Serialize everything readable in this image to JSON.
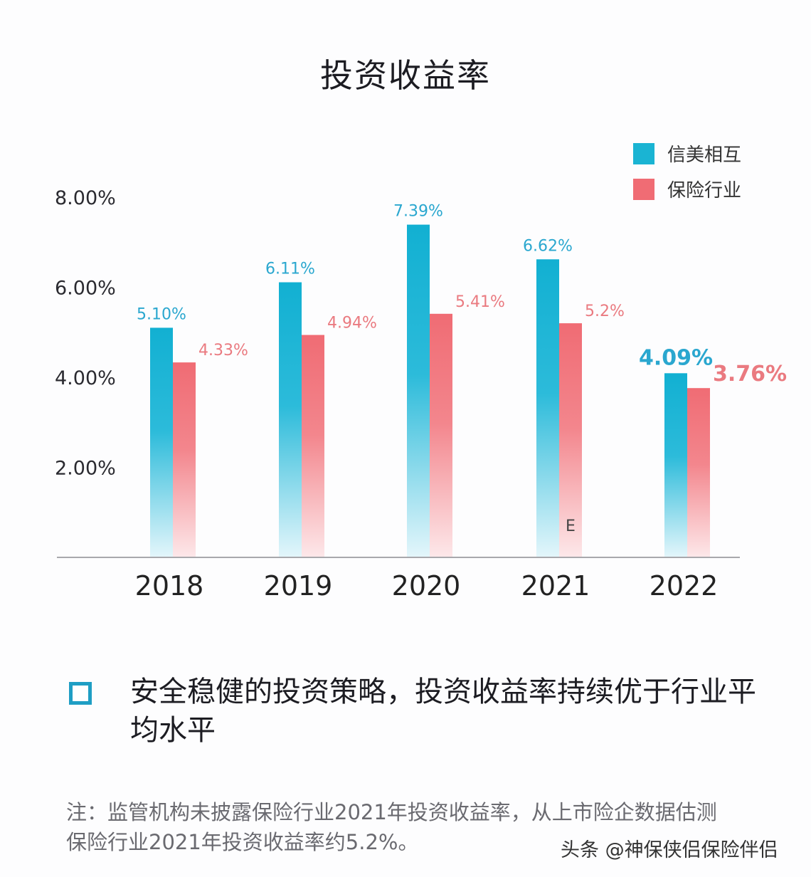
{
  "chart_data": {
    "type": "bar",
    "title": "投资收益率",
    "xlabel": "",
    "ylabel": "",
    "categories": [
      "2018",
      "2019",
      "2020",
      "2021",
      "2022"
    ],
    "series": [
      {
        "name": "信美相互",
        "color": "#1ab4d3",
        "values": [
          5.1,
          6.11,
          7.39,
          6.62,
          4.09
        ],
        "labels": [
          "5.10%",
          "6.11%",
          "7.39%",
          "6.62%",
          "4.09%"
        ]
      },
      {
        "name": "保险行业",
        "color": "#f06c74",
        "values": [
          4.33,
          4.94,
          5.41,
          5.2,
          3.76
        ],
        "labels": [
          "4.33%",
          "4.94%",
          "5.41%",
          "5.2%",
          "3.76%"
        ]
      }
    ],
    "yticks": [
      {
        "value": 2,
        "label": "2.00%"
      },
      {
        "value": 4,
        "label": "4.00%"
      },
      {
        "value": 6,
        "label": "6.00%"
      },
      {
        "value": 8,
        "label": "8.00%"
      }
    ],
    "ylim": [
      0,
      8
    ],
    "grid": false,
    "legend_position": "top-right",
    "annotations": [
      {
        "category": "2021",
        "series": "保险行业",
        "text": "E"
      }
    ]
  },
  "summary": {
    "text": "安全稳健的投资策略，投资收益率持续优于行业平均水平"
  },
  "note": {
    "text": "注：监管机构未披露保险行业2021年投资收益率，从上市险企数据估测保险行业2021年投资收益率约5.2%。"
  },
  "watermark": {
    "text": "头条 @神保侠侣保险伴侣"
  }
}
